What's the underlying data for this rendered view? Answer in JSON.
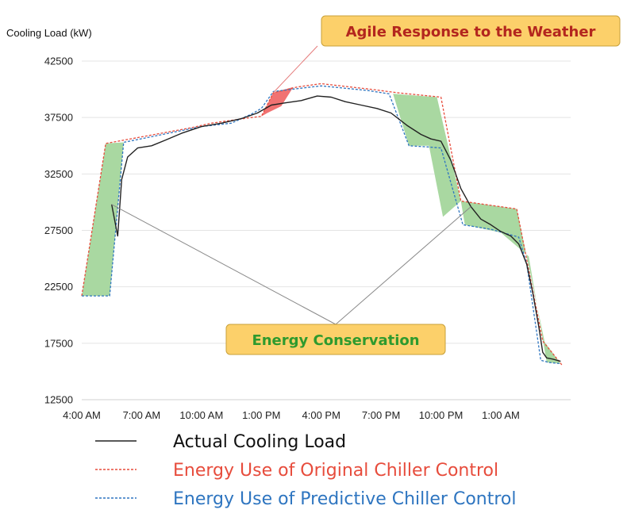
{
  "chart_data": {
    "type": "line",
    "ylabel": "Cooling Load (kW)",
    "ylim": [
      12500,
      42500
    ],
    "yticks": [
      "12500",
      "17500",
      "22500",
      "27500",
      "32500",
      "37500",
      "42500"
    ],
    "xlim": [
      4,
      28.5
    ],
    "xticks": [
      {
        "x": 4,
        "label": "4:00 AM"
      },
      {
        "x": 7,
        "label": "7:00 AM"
      },
      {
        "x": 10,
        "label": "10:00 AM"
      },
      {
        "x": 13,
        "label": "1:00 PM"
      },
      {
        "x": 16,
        "label": "4:00 PM"
      },
      {
        "x": 19,
        "label": "7:00 PM"
      },
      {
        "x": 22,
        "label": "10:00 PM"
      },
      {
        "x": 25,
        "label": "1:00 AM"
      }
    ],
    "grid": "horizontal",
    "series": [
      {
        "name": "Actual Cooling Load",
        "color": "#222222",
        "style": "solid",
        "points": [
          [
            5.5,
            29800
          ],
          [
            5.8,
            27000
          ],
          [
            6.0,
            32000
          ],
          [
            6.3,
            34000
          ],
          [
            6.8,
            34800
          ],
          [
            7.5,
            35000
          ],
          [
            8.2,
            35500
          ],
          [
            9.0,
            36100
          ],
          [
            10.0,
            36700
          ],
          [
            11.0,
            37000
          ],
          [
            12.0,
            37400
          ],
          [
            12.8,
            37900
          ],
          [
            13.5,
            38600
          ],
          [
            14.2,
            38800
          ],
          [
            15.0,
            39000
          ],
          [
            15.8,
            39400
          ],
          [
            16.5,
            39300
          ],
          [
            17.2,
            38900
          ],
          [
            18.0,
            38600
          ],
          [
            18.8,
            38300
          ],
          [
            19.5,
            37900
          ],
          [
            20.3,
            36800
          ],
          [
            21.0,
            36000
          ],
          [
            21.5,
            35600
          ],
          [
            22.0,
            35400
          ],
          [
            22.5,
            33700
          ],
          [
            23.0,
            31200
          ],
          [
            23.5,
            29600
          ],
          [
            24.0,
            28500
          ],
          [
            24.5,
            28000
          ],
          [
            25.0,
            27400
          ],
          [
            25.5,
            27000
          ],
          [
            25.9,
            26300
          ],
          [
            26.3,
            24500
          ],
          [
            26.6,
            22000
          ],
          [
            26.9,
            19000
          ],
          [
            27.1,
            16700
          ],
          [
            27.3,
            16200
          ],
          [
            27.6,
            16100
          ],
          [
            28.0,
            15900
          ]
        ]
      },
      {
        "name": "Energy Use of Original Chiller Control",
        "color": "#e74c3c",
        "style": "dashed",
        "points": [
          [
            4.0,
            21700
          ],
          [
            5.2,
            35200
          ],
          [
            9.5,
            36600
          ],
          [
            10.5,
            37000
          ],
          [
            12.5,
            37500
          ],
          [
            13.0,
            37600
          ],
          [
            13.6,
            39700
          ],
          [
            14.8,
            40200
          ],
          [
            16.0,
            40500
          ],
          [
            18.5,
            40000
          ],
          [
            19.8,
            39700
          ],
          [
            22.0,
            39300
          ],
          [
            23.0,
            30100
          ],
          [
            25.8,
            29400
          ],
          [
            27.1,
            17700
          ],
          [
            28.1,
            15500
          ]
        ]
      },
      {
        "name": "Energy Use of Predictive Chiller Control",
        "color": "#2e75c0",
        "style": "dashed",
        "points": [
          [
            4.0,
            21700
          ],
          [
            5.4,
            21700
          ],
          [
            6.1,
            35300
          ],
          [
            10.0,
            36700
          ],
          [
            11.5,
            37000
          ],
          [
            12.5,
            37800
          ],
          [
            13.0,
            38300
          ],
          [
            13.6,
            39800
          ],
          [
            15.0,
            40100
          ],
          [
            16.0,
            40300
          ],
          [
            18.3,
            39900
          ],
          [
            19.4,
            39600
          ],
          [
            20.4,
            35000
          ],
          [
            21.3,
            34900
          ],
          [
            22.0,
            34800
          ],
          [
            23.1,
            28000
          ],
          [
            24.5,
            27600
          ],
          [
            25.9,
            26900
          ],
          [
            26.3,
            24500
          ],
          [
            27.0,
            16000
          ],
          [
            27.4,
            15800
          ],
          [
            28.0,
            15700
          ]
        ]
      }
    ],
    "shaded_regions": [
      {
        "kind": "savings",
        "color": "#a9d8a1",
        "polygon": [
          [
            4.0,
            21700
          ],
          [
            5.2,
            35200
          ],
          [
            6.1,
            35300
          ],
          [
            5.4,
            21700
          ]
        ]
      },
      {
        "kind": "savings",
        "color": "#a9d8a1",
        "polygon": [
          [
            19.6,
            39600
          ],
          [
            21.8,
            39300
          ],
          [
            23.0,
            30100
          ],
          [
            22.1,
            28700
          ],
          [
            21.4,
            35000
          ],
          [
            20.4,
            35000
          ]
        ]
      },
      {
        "kind": "savings",
        "color": "#a9d8a1",
        "polygon": [
          [
            23.0,
            30100
          ],
          [
            25.8,
            29400
          ],
          [
            27.2,
            17600
          ],
          [
            28.0,
            15700
          ],
          [
            27.3,
            15800
          ],
          [
            26.4,
            25200
          ],
          [
            25.0,
            27300
          ],
          [
            23.2,
            28000
          ]
        ]
      },
      {
        "kind": "weather",
        "color": "#f06a6a",
        "polygon": [
          [
            13.0,
            37600
          ],
          [
            13.6,
            39700
          ],
          [
            14.6,
            40200
          ],
          [
            14.0,
            38500
          ],
          [
            13.3,
            37900
          ]
        ]
      }
    ],
    "annotations": [
      {
        "text": "Agile Response to the Weather",
        "text_color": "#b3261e",
        "box_color": "#fcd06a",
        "points_to": [
          [
            13.6,
            39700
          ]
        ]
      },
      {
        "text": "Energy Conservation",
        "text_color": "#2e9a2e",
        "box_color": "#fcd06a",
        "points_to": [
          [
            5.5,
            29800
          ],
          [
            23.5,
            29600
          ]
        ]
      }
    ],
    "legend": {
      "placement": "bottom"
    }
  }
}
